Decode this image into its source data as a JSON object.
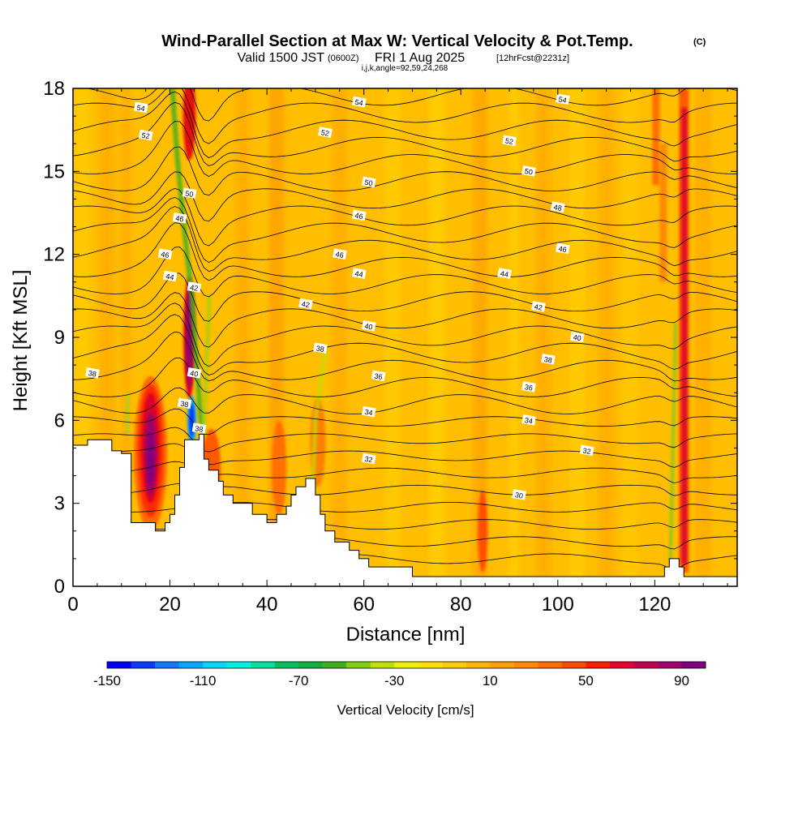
{
  "title": {
    "main": "Wind-Parallel Section at Max W: Vertical Velocity & Pot.Temp.",
    "copyright": "(C)",
    "valid_prefix": "Valid 1500 JST",
    "valid_utc": "(0600Z)",
    "valid_date": "FRI 1 Aug 2025",
    "forecast": "[12hrFcst@2231z]",
    "indices": "i,j,k,angle=92,59,24,268"
  },
  "chart_data": {
    "type": "heatmap",
    "xlabel": "Distance [nm]",
    "ylabel": "Height [Kft MSL]",
    "xlim": [
      0,
      137
    ],
    "ylim": [
      0,
      18
    ],
    "x_ticks": [
      0,
      20,
      40,
      60,
      80,
      100,
      120
    ],
    "y_ticks": [
      0,
      3,
      6,
      9,
      12,
      15,
      18
    ],
    "colorbar": {
      "label": "Vertical Velocity [cm/s]",
      "range": [
        -150,
        100
      ],
      "tick_labels": [
        "-150",
        "-110",
        "-70",
        "-30",
        "10",
        "50",
        "90"
      ],
      "tick_values": [
        -150,
        -110,
        -70,
        -30,
        10,
        50,
        90
      ],
      "colors": [
        "#0000ff",
        "#0a3cff",
        "#1478ff",
        "#00a8ff",
        "#00d8ff",
        "#00f0e0",
        "#00e0a0",
        "#00c060",
        "#10b040",
        "#40b020",
        "#80d010",
        "#c0e000",
        "#f0f000",
        "#ffe000",
        "#ffcc00",
        "#ffb400",
        "#ffa000",
        "#ff8a00",
        "#ff6e00",
        "#ff4a00",
        "#ff1e00",
        "#e80030",
        "#c00050",
        "#a00070",
        "#800080"
      ]
    },
    "contours": {
      "variable": "Potential temperature",
      "levels": [
        30,
        32,
        34,
        36,
        38,
        40,
        42,
        44,
        46,
        48,
        50,
        52,
        54
      ],
      "labels": [
        {
          "value": "30",
          "x": 92,
          "y": 3.3
        },
        {
          "value": "32",
          "x": 61,
          "y": 4.6
        },
        {
          "value": "32",
          "x": 106,
          "y": 4.9
        },
        {
          "value": "34",
          "x": 61,
          "y": 6.3
        },
        {
          "value": "34",
          "x": 94,
          "y": 6.0
        },
        {
          "value": "36",
          "x": 63,
          "y": 7.6
        },
        {
          "value": "36",
          "x": 94,
          "y": 7.2
        },
        {
          "value": "38",
          "x": 4,
          "y": 7.7
        },
        {
          "value": "38",
          "x": 51,
          "y": 8.6
        },
        {
          "value": "38",
          "x": 98,
          "y": 8.2
        },
        {
          "value": "38",
          "x": 23,
          "y": 6.6
        },
        {
          "value": "38",
          "x": 26,
          "y": 5.7
        },
        {
          "value": "40",
          "x": 25,
          "y": 7.7
        },
        {
          "value": "40",
          "x": 61,
          "y": 9.4
        },
        {
          "value": "40",
          "x": 104,
          "y": 9.0
        },
        {
          "value": "42",
          "x": 48,
          "y": 10.2
        },
        {
          "value": "42",
          "x": 96,
          "y": 10.1
        },
        {
          "value": "42",
          "x": 25,
          "y": 10.8
        },
        {
          "value": "44",
          "x": 20,
          "y": 11.2
        },
        {
          "value": "44",
          "x": 59,
          "y": 11.3
        },
        {
          "value": "44",
          "x": 89,
          "y": 11.3
        },
        {
          "value": "46",
          "x": 19,
          "y": 12.0
        },
        {
          "value": "46",
          "x": 55,
          "y": 12.0
        },
        {
          "value": "46",
          "x": 101,
          "y": 12.2
        },
        {
          "value": "46",
          "x": 22,
          "y": 13.3
        },
        {
          "value": "46",
          "x": 59,
          "y": 13.4
        },
        {
          "value": "48",
          "x": 100,
          "y": 13.7
        },
        {
          "value": "50",
          "x": 24,
          "y": 14.2
        },
        {
          "value": "50",
          "x": 61,
          "y": 14.6
        },
        {
          "value": "50",
          "x": 94,
          "y": 15.0
        },
        {
          "value": "52",
          "x": 15,
          "y": 16.3
        },
        {
          "value": "52",
          "x": 52,
          "y": 16.4
        },
        {
          "value": "52",
          "x": 90,
          "y": 16.1
        },
        {
          "value": "54",
          "x": 14,
          "y": 17.3
        },
        {
          "value": "54",
          "x": 59,
          "y": 17.5
        },
        {
          "value": "54",
          "x": 101,
          "y": 17.6
        }
      ]
    },
    "terrain": [
      [
        0,
        5.1
      ],
      [
        3,
        5.1
      ],
      [
        3,
        5.3
      ],
      [
        8,
        5.3
      ],
      [
        8,
        4.9
      ],
      [
        10,
        4.9
      ],
      [
        10,
        4.8
      ],
      [
        12,
        4.8
      ],
      [
        12,
        2.3
      ],
      [
        17,
        2.3
      ],
      [
        17,
        2.0
      ],
      [
        19,
        2.0
      ],
      [
        19,
        2.3
      ],
      [
        20,
        2.3
      ],
      [
        20,
        2.6
      ],
      [
        21,
        2.6
      ],
      [
        21,
        3.3
      ],
      [
        22,
        3.3
      ],
      [
        22,
        4.3
      ],
      [
        23,
        4.3
      ],
      [
        23,
        5.3
      ],
      [
        26,
        5.3
      ],
      [
        26,
        5.5
      ],
      [
        27,
        5.5
      ],
      [
        27,
        4.6
      ],
      [
        28,
        4.6
      ],
      [
        28,
        4.2
      ],
      [
        30,
        4.2
      ],
      [
        30,
        3.8
      ],
      [
        31,
        3.8
      ],
      [
        31,
        3.3
      ],
      [
        33,
        3.3
      ],
      [
        33,
        3.0
      ],
      [
        37,
        3.0
      ],
      [
        37,
        2.6
      ],
      [
        40,
        2.6
      ],
      [
        40,
        2.3
      ],
      [
        42,
        2.3
      ],
      [
        42,
        2.6
      ],
      [
        44,
        2.6
      ],
      [
        44,
        2.9
      ],
      [
        45,
        2.9
      ],
      [
        45,
        3.3
      ],
      [
        46,
        3.3
      ],
      [
        46,
        3.6
      ],
      [
        48,
        3.6
      ],
      [
        48,
        3.9
      ],
      [
        50,
        3.9
      ],
      [
        50,
        3.3
      ],
      [
        51,
        3.3
      ],
      [
        51,
        2.6
      ],
      [
        52,
        2.6
      ],
      [
        52,
        2.0
      ],
      [
        54,
        2.0
      ],
      [
        54,
        1.6
      ],
      [
        57,
        1.6
      ],
      [
        57,
        1.3
      ],
      [
        59,
        1.3
      ],
      [
        59,
        1.0
      ],
      [
        61,
        1.0
      ],
      [
        61,
        0.7
      ],
      [
        70,
        0.7
      ],
      [
        70,
        0.35
      ],
      [
        122,
        0.35
      ],
      [
        122,
        0.7
      ],
      [
        123,
        0.7
      ],
      [
        123,
        1.0
      ],
      [
        125,
        1.0
      ],
      [
        125,
        0.7
      ],
      [
        126,
        0.7
      ],
      [
        126,
        0.35
      ],
      [
        137,
        0.35
      ]
    ]
  }
}
